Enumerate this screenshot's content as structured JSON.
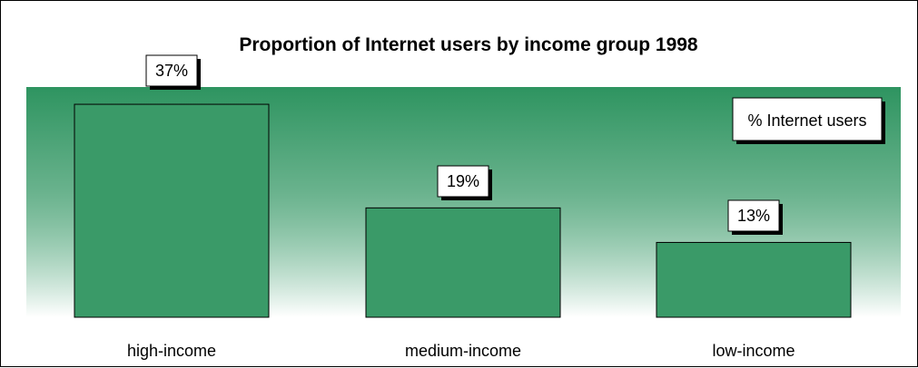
{
  "colors": {
    "plot_band_top": "#2e9460",
    "plot_band_bottom": "#ffffff",
    "bar_fill": "#3a9a68",
    "bar_stroke": "#000000",
    "label_box_fill": "#ffffff",
    "label_box_shadow": "#000000",
    "text": "#000000"
  },
  "chart_data": {
    "type": "bar",
    "title": "Proportion of Internet users by income group 1998",
    "xlabel": "",
    "ylabel": "",
    "ylim": [
      0,
      40
    ],
    "grid": false,
    "legend": {
      "placement": "top-right",
      "entries": [
        "% Internet users"
      ]
    },
    "categories": [
      "high-income",
      "medium-income",
      "low-income"
    ],
    "series": [
      {
        "name": "% Internet users",
        "values": [
          37,
          19,
          13
        ],
        "labels": [
          "37%",
          "19%",
          "13%"
        ]
      }
    ]
  }
}
